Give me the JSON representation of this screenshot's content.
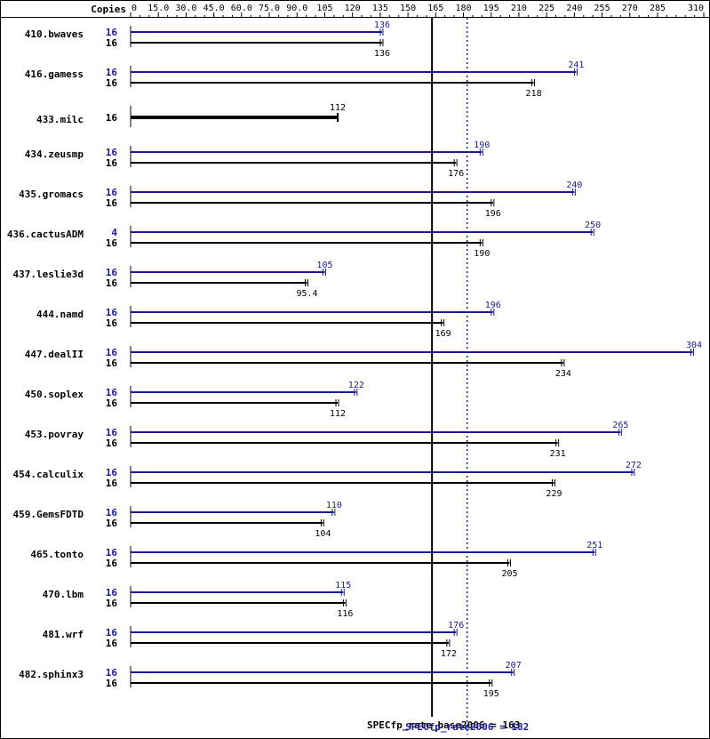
{
  "chart_data": {
    "type": "bar",
    "copies_header": "Copies",
    "xlim": [
      0,
      310
    ],
    "ticks": [
      "0",
      "15.0",
      "30.0",
      "45.0",
      "60.0",
      "75.0",
      "90.0",
      "105",
      "120",
      "135",
      "150",
      "165",
      "180",
      "195",
      "210",
      "225",
      "240",
      "255",
      "270",
      "285",
      "310"
    ],
    "tick_values": [
      0,
      15,
      30,
      45,
      60,
      75,
      90,
      105,
      120,
      135,
      150,
      165,
      180,
      195,
      210,
      225,
      240,
      255,
      270,
      285,
      310
    ],
    "colors": {
      "peak": "#191999",
      "base": "#000000"
    },
    "benchmarks": [
      {
        "name": "410.bwaves",
        "peak_copies": "16",
        "peak": 136,
        "peak_label": "136",
        "base_copies": "16",
        "base": 136,
        "base_label": "136"
      },
      {
        "name": "416.gamess",
        "peak_copies": "16",
        "peak": 241,
        "peak_label": "241",
        "base_copies": "16",
        "base": 218,
        "base_label": "218"
      },
      {
        "name": "433.milc",
        "peak_copies": "",
        "peak": null,
        "peak_label": "",
        "base_copies": "16",
        "base": 112,
        "base_label": "112",
        "base_only": true
      },
      {
        "name": "434.zeusmp",
        "peak_copies": "16",
        "peak": 190,
        "peak_label": "190",
        "base_copies": "16",
        "base": 176,
        "base_label": "176"
      },
      {
        "name": "435.gromacs",
        "peak_copies": "16",
        "peak": 240,
        "peak_label": "240",
        "base_copies": "16",
        "base": 196,
        "base_label": "196"
      },
      {
        "name": "436.cactusADM",
        "peak_copies": "4",
        "peak": 250,
        "peak_label": "250",
        "base_copies": "16",
        "base": 190,
        "base_label": "190"
      },
      {
        "name": "437.leslie3d",
        "peak_copies": "16",
        "peak": 105,
        "peak_label": "105",
        "base_copies": "16",
        "base": 95.4,
        "base_label": "95.4"
      },
      {
        "name": "444.namd",
        "peak_copies": "16",
        "peak": 196,
        "peak_label": "196",
        "base_copies": "16",
        "base": 169,
        "base_label": "169"
      },
      {
        "name": "447.dealII",
        "peak_copies": "16",
        "peak": 304,
        "peak_label": "304",
        "base_copies": "16",
        "base": 234,
        "base_label": "234"
      },
      {
        "name": "450.soplex",
        "peak_copies": "16",
        "peak": 122,
        "peak_label": "122",
        "base_copies": "16",
        "base": 112,
        "base_label": "112"
      },
      {
        "name": "453.povray",
        "peak_copies": "16",
        "peak": 265,
        "peak_label": "265",
        "base_copies": "16",
        "base": 231,
        "base_label": "231"
      },
      {
        "name": "454.calculix",
        "peak_copies": "16",
        "peak": 272,
        "peak_label": "272",
        "base_copies": "16",
        "base": 229,
        "base_label": "229"
      },
      {
        "name": "459.GemsFDTD",
        "peak_copies": "16",
        "peak": 110,
        "peak_label": "110",
        "base_copies": "16",
        "base": 104,
        "base_label": "104"
      },
      {
        "name": "465.tonto",
        "peak_copies": "16",
        "peak": 251,
        "peak_label": "251",
        "base_copies": "16",
        "base": 205,
        "base_label": "205"
      },
      {
        "name": "470.lbm",
        "peak_copies": "16",
        "peak": 115,
        "peak_label": "115",
        "base_copies": "16",
        "base": 116,
        "base_label": "116"
      },
      {
        "name": "481.wrf",
        "peak_copies": "16",
        "peak": 176,
        "peak_label": "176",
        "base_copies": "16",
        "base": 172,
        "base_label": "172"
      },
      {
        "name": "482.sphinx3",
        "peak_copies": "16",
        "peak": 207,
        "peak_label": "207",
        "base_copies": "16",
        "base": 195,
        "base_label": "195"
      }
    ],
    "base_reference": {
      "value": 163,
      "label": "SPECfp_rate_base2006 = 163"
    },
    "peak_reference": {
      "value": 182,
      "label": "SPECfp_rate2006 = 182"
    }
  }
}
